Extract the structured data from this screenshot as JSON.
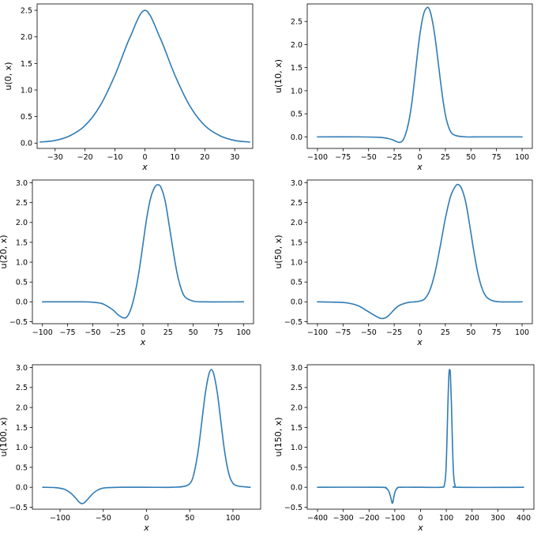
{
  "figure": {
    "line_color": "#2f7bb6"
  },
  "chart_data": [
    {
      "type": "line",
      "title": "",
      "xlabel": "x",
      "ylabel": "u(0, x)",
      "xlim": [
        -36,
        36
      ],
      "ylim": [
        -0.1,
        2.62
      ],
      "xticks": [
        -30,
        -20,
        -10,
        0,
        10,
        20,
        30
      ],
      "xtick_labels": [
        "−30",
        "−20",
        "−10",
        "0",
        "10",
        "20",
        "30"
      ],
      "yticks": [
        0.0,
        0.5,
        1.0,
        1.5,
        2.0,
        2.5
      ],
      "ytick_labels": [
        "0.0",
        "0.5",
        "1.0",
        "1.5",
        "2.0",
        "2.5"
      ],
      "grid": false,
      "series": [
        {
          "x": [
            -35,
            -30,
            -25,
            -20,
            -15,
            -10,
            -5,
            0,
            5,
            10,
            15,
            20,
            25,
            30,
            35
          ],
          "y": [
            0.02,
            0.05,
            0.14,
            0.33,
            0.7,
            1.28,
            1.99,
            2.5,
            1.99,
            1.28,
            0.7,
            0.33,
            0.14,
            0.05,
            0.02
          ]
        }
      ]
    },
    {
      "type": "line",
      "title": "",
      "xlabel": "x",
      "ylabel": "u(10, x)",
      "xlim": [
        -110,
        110
      ],
      "ylim": [
        -0.25,
        2.88
      ],
      "xticks": [
        -100,
        -75,
        -50,
        -25,
        0,
        25,
        50,
        75,
        100
      ],
      "xtick_labels": [
        "−100",
        "−75",
        "−50",
        "−25",
        "0",
        "25",
        "50",
        "75",
        "100"
      ],
      "yticks": [
        0.0,
        0.5,
        1.0,
        1.5,
        2.0,
        2.5
      ],
      "ytick_labels": [
        "0.0",
        "0.5",
        "1.0",
        "1.5",
        "2.0",
        "2.5"
      ],
      "grid": false,
      "series": [
        {
          "x": [
            -100,
            -60,
            -40,
            -32,
            -27,
            -23,
            -20,
            -17,
            -14,
            -11,
            -8,
            -5,
            -2,
            1,
            4,
            7,
            9,
            11,
            14,
            17,
            20,
            23,
            26,
            30,
            35,
            45,
            60,
            100
          ],
          "y": [
            0.0,
            0.0,
            -0.01,
            -0.03,
            -0.06,
            -0.1,
            -0.12,
            -0.09,
            0.05,
            0.3,
            0.7,
            1.25,
            1.85,
            2.35,
            2.68,
            2.8,
            2.78,
            2.65,
            2.3,
            1.8,
            1.25,
            0.75,
            0.38,
            0.12,
            0.03,
            0.0,
            0.0,
            0.0
          ]
        }
      ]
    },
    {
      "type": "line",
      "title": "",
      "xlabel": "x",
      "ylabel": "u(20, x)",
      "xlim": [
        -110,
        110
      ],
      "ylim": [
        -0.55,
        3.07
      ],
      "xticks": [
        -100,
        -75,
        -50,
        -25,
        0,
        25,
        50,
        75,
        100
      ],
      "xtick_labels": [
        "−100",
        "−75",
        "−50",
        "−25",
        "0",
        "25",
        "50",
        "75",
        "100"
      ],
      "yticks": [
        -0.5,
        0.0,
        0.5,
        1.0,
        1.5,
        2.0,
        2.5,
        3.0
      ],
      "ytick_labels": [
        "−0.5",
        "0.0",
        "0.5",
        "1.0",
        "1.5",
        "2.0",
        "2.5",
        "3.0"
      ],
      "grid": false,
      "series": [
        {
          "x": [
            -100,
            -60,
            -50,
            -40,
            -30,
            -25,
            -20,
            -16,
            -12,
            -8,
            -4,
            0,
            4,
            8,
            12,
            15,
            18,
            22,
            26,
            30,
            34,
            38,
            42,
            50,
            60,
            100
          ],
          "y": [
            0.0,
            0.0,
            -0.01,
            -0.05,
            -0.2,
            -0.32,
            -0.4,
            -0.38,
            -0.18,
            0.2,
            0.75,
            1.45,
            2.15,
            2.65,
            2.9,
            2.95,
            2.88,
            2.55,
            1.95,
            1.3,
            0.72,
            0.33,
            0.12,
            0.02,
            0.0,
            0.0
          ]
        }
      ]
    },
    {
      "type": "line",
      "title": "",
      "xlabel": "x",
      "ylabel": "u(50, x)",
      "xlim": [
        -110,
        110
      ],
      "ylim": [
        -0.55,
        3.07
      ],
      "xticks": [
        -100,
        -75,
        -50,
        -25,
        0,
        25,
        50,
        75,
        100
      ],
      "xtick_labels": [
        "−100",
        "−75",
        "−50",
        "−25",
        "0",
        "25",
        "50",
        "75",
        "100"
      ],
      "yticks": [
        -0.5,
        0.0,
        0.5,
        1.0,
        1.5,
        2.0,
        2.5,
        3.0
      ],
      "ytick_labels": [
        "−0.5",
        "0.0",
        "0.5",
        "1.0",
        "1.5",
        "2.0",
        "2.5",
        "3.0"
      ],
      "grid": false,
      "series": [
        {
          "x": [
            -100,
            -80,
            -70,
            -60,
            -52,
            -45,
            -40,
            -36,
            -32,
            -28,
            -24,
            -20,
            -15,
            -10,
            -5,
            0,
            5,
            10,
            15,
            20,
            25,
            30,
            35,
            38,
            41,
            45,
            49,
            53,
            57,
            61,
            65,
            70,
            78,
            100
          ],
          "y": [
            0.0,
            -0.01,
            -0.03,
            -0.1,
            -0.22,
            -0.33,
            -0.4,
            -0.42,
            -0.38,
            -0.28,
            -0.17,
            -0.09,
            -0.04,
            -0.01,
            0.0,
            0.02,
            0.08,
            0.3,
            0.75,
            1.4,
            2.1,
            2.65,
            2.92,
            2.95,
            2.85,
            2.5,
            1.9,
            1.25,
            0.7,
            0.33,
            0.13,
            0.04,
            0.0,
            0.0
          ]
        }
      ]
    },
    {
      "type": "line",
      "title": "",
      "xlabel": "x",
      "ylabel": "u(100, x)",
      "xlim": [
        -132,
        132
      ],
      "ylim": [
        -0.55,
        3.07
      ],
      "xticks": [
        -100,
        -50,
        0,
        50,
        100
      ],
      "xtick_labels": [
        "−100",
        "−50",
        "0",
        "50",
        "100"
      ],
      "yticks": [
        -0.5,
        0.0,
        0.5,
        1.0,
        1.5,
        2.0,
        2.5,
        3.0
      ],
      "ytick_labels": [
        "−0.5",
        "0.0",
        "0.5",
        "1.0",
        "1.5",
        "2.0",
        "2.5",
        "3.0"
      ],
      "grid": false,
      "series": [
        {
          "x": [
            -120,
            -105,
            -95,
            -88,
            -82,
            -78,
            -75,
            -72,
            -68,
            -63,
            -58,
            -52,
            -45,
            -30,
            0,
            30,
            45,
            52,
            56,
            60,
            64,
            68,
            72,
            75,
            78,
            82,
            86,
            90,
            94,
            98,
            104,
            120
          ],
          "y": [
            0.0,
            -0.01,
            -0.05,
            -0.14,
            -0.27,
            -0.37,
            -0.41,
            -0.39,
            -0.3,
            -0.18,
            -0.09,
            -0.03,
            -0.01,
            0.0,
            0.0,
            0.0,
            0.03,
            0.15,
            0.45,
            0.95,
            1.65,
            2.35,
            2.82,
            2.95,
            2.82,
            2.35,
            1.65,
            0.95,
            0.45,
            0.17,
            0.04,
            0.0
          ]
        }
      ]
    },
    {
      "type": "line",
      "title": "",
      "xlabel": "x",
      "ylabel": "u(150, x)",
      "xlim": [
        -440,
        440
      ],
      "ylim": [
        -0.55,
        3.07
      ],
      "xticks": [
        -400,
        -300,
        -200,
        -100,
        0,
        100,
        200,
        300,
        400
      ],
      "xtick_labels": [
        "−400",
        "−300",
        "−200",
        "−100",
        "0",
        "100",
        "200",
        "300",
        "400"
      ],
      "yticks": [
        -0.5,
        0.0,
        0.5,
        1.0,
        1.5,
        2.0,
        2.5,
        3.0
      ],
      "ytick_labels": [
        "−0.5",
        "0.0",
        "0.5",
        "1.0",
        "1.5",
        "2.0",
        "2.5",
        "3.0"
      ],
      "grid": false,
      "series": [
        {
          "x": [
            -400,
            -160,
            -135,
            -125,
            -118,
            -113,
            -110,
            -107,
            -103,
            -97,
            -90,
            -80,
            0,
            80,
            92,
            98,
            102,
            106,
            110,
            113,
            116,
            120,
            124,
            128,
            134,
            150,
            400
          ],
          "y": [
            0.0,
            0.0,
            -0.02,
            -0.08,
            -0.2,
            -0.33,
            -0.4,
            -0.36,
            -0.22,
            -0.08,
            -0.02,
            0.0,
            0.0,
            0.0,
            0.05,
            0.35,
            1.05,
            2.05,
            2.8,
            2.95,
            2.8,
            2.05,
            1.05,
            0.35,
            0.05,
            0.0,
            0.0
          ]
        }
      ]
    }
  ]
}
